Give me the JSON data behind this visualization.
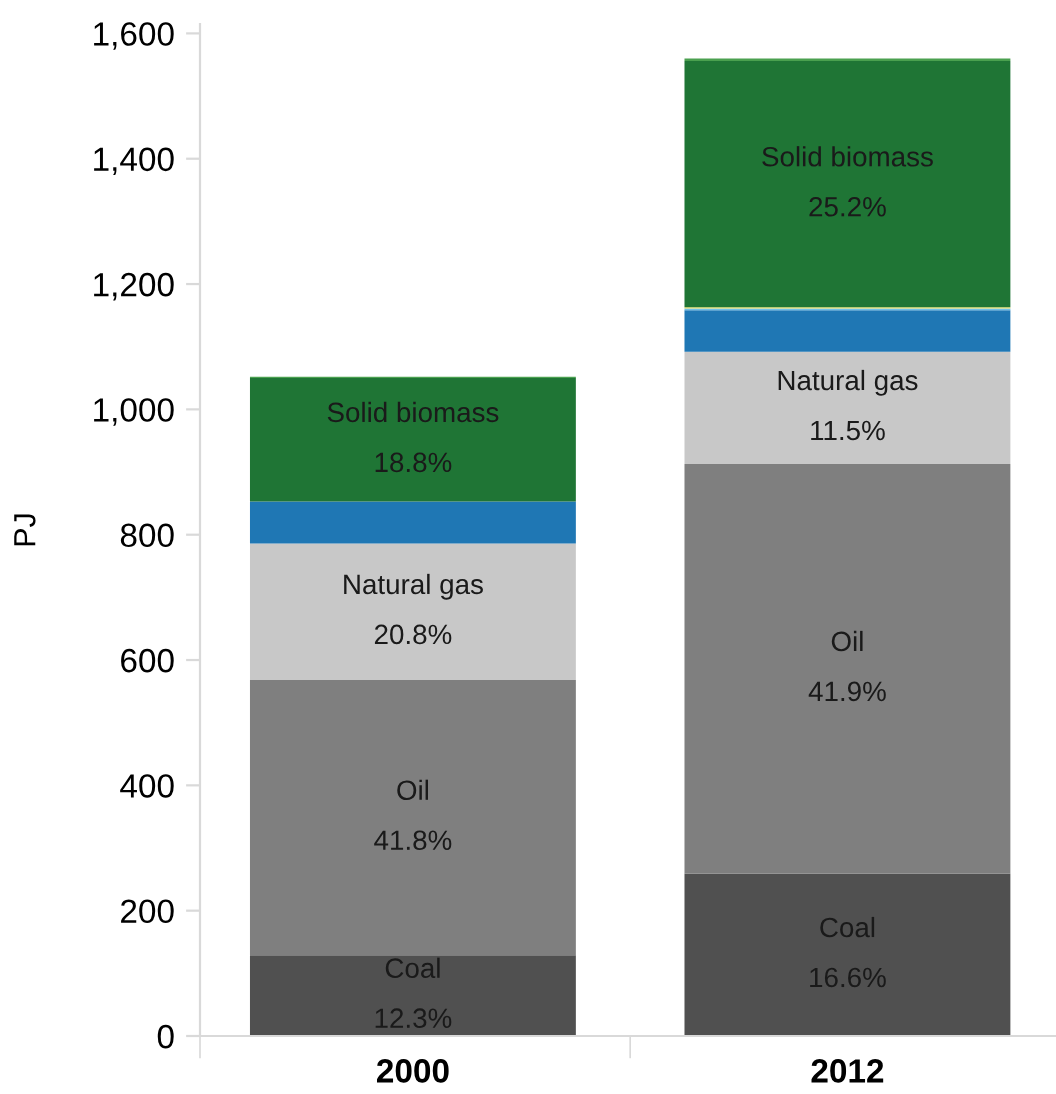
{
  "chart_data": {
    "type": "bar",
    "stacked": true,
    "ylabel": "PJ",
    "categories": [
      "2000",
      "2012"
    ],
    "series": [
      {
        "name": "Coal",
        "color": "#505050",
        "values": [
          129,
          259
        ]
      },
      {
        "name": "Oil",
        "color": "#7f7f7f",
        "values": [
          439,
          654
        ]
      },
      {
        "name": "Natural gas",
        "color": "#c8c8c8",
        "values": [
          218,
          179
        ]
      },
      {
        "color": "#1f77b4",
        "values": [
          67,
          66
        ]
      },
      {
        "color": "#6fc0e8",
        "values": [
          0,
          3
        ]
      },
      {
        "color": "#e8e060",
        "values": [
          0,
          2
        ]
      },
      {
        "name": "Solid biomass",
        "color": "#1f7535",
        "values": [
          197,
          393
        ]
      },
      {
        "color": "#4aa04f",
        "values": [
          2,
          4
        ]
      }
    ],
    "ylim": [
      0,
      1615
    ],
    "yticks": [
      0,
      200,
      400,
      600,
      800,
      {
        "value": 1000,
        "label": "1,000"
      },
      {
        "value": 1200,
        "label": "1,200"
      },
      {
        "value": 1400,
        "label": "1,400"
      },
      {
        "value": 1600,
        "label": "1,600"
      }
    ],
    "annotations": [
      "12.3%",
      "16.6%",
      "41.8%",
      "41.9%",
      "20.8%",
      "11.5%",
      "18.8%",
      "25.2%"
    ],
    "grid": false,
    "legend": false
  }
}
